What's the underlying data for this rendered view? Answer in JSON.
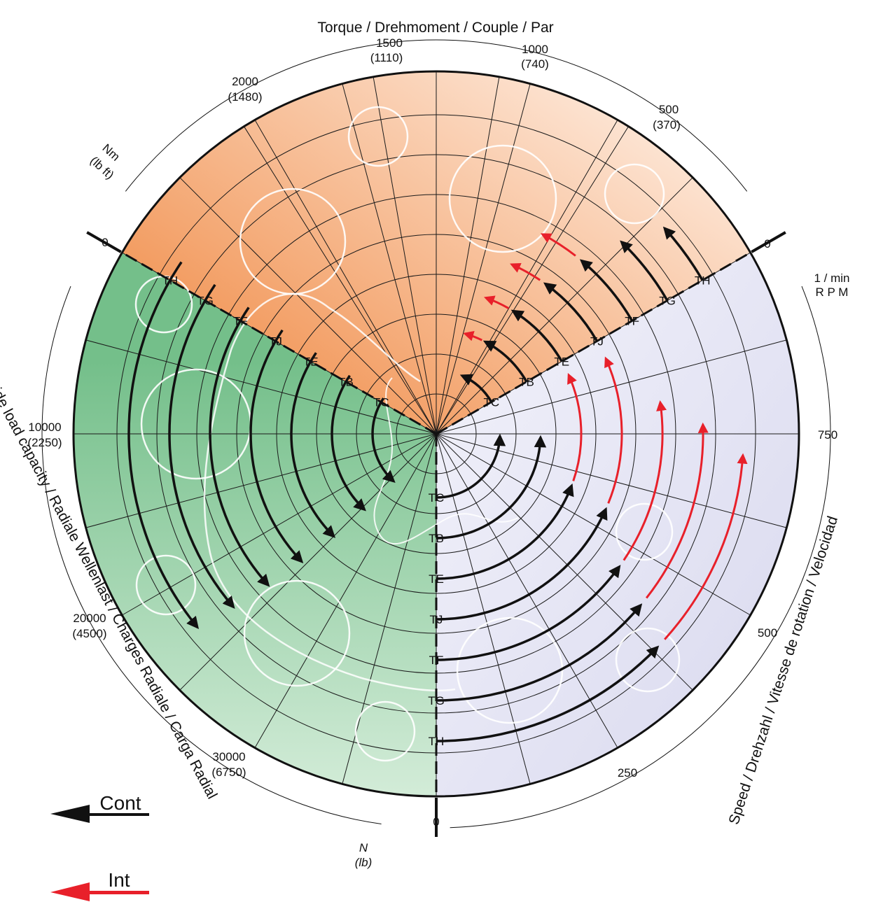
{
  "titles": {
    "torque": "Torque / Drehmoment / Couple / Par",
    "speed": "Speed / Drehzahl / Vitesse de rotation / Velocidad",
    "side_load": "Side load capacity / Radiale Wellenlast / Charges Radiale / Carga Radial"
  },
  "units": {
    "torque_1": "Nm",
    "torque_2": "(lb ft)",
    "speed_1": "1 / min",
    "speed_2": "R P M",
    "load_1": "N",
    "load_2": "(lb)"
  },
  "torque_ticks": [
    {
      "top": "0",
      "bottom": ""
    },
    {
      "top": "2000",
      "bottom": "(1480)"
    },
    {
      "top": "1500",
      "bottom": "(1110)"
    },
    {
      "top": "1000",
      "bottom": "(740)"
    },
    {
      "top": "500",
      "bottom": "(370)"
    },
    {
      "top": "0",
      "bottom": ""
    }
  ],
  "speed_ticks": [
    "750",
    "500",
    "250",
    "0"
  ],
  "load_ticks": [
    {
      "top": "10000",
      "bottom": "(2250)"
    },
    {
      "top": "20000",
      "bottom": "(4500)"
    },
    {
      "top": "30000",
      "bottom": "(6750)"
    }
  ],
  "models": [
    "TC",
    "TB",
    "TE",
    "TJ",
    "TF",
    "TG",
    "TH"
  ],
  "legend": {
    "cont": "Cont",
    "int": "Int"
  },
  "colors": {
    "torque_sector": "#f4a66f",
    "speed_sector": "#e4e4f2",
    "load_sector": "#8dc89c",
    "continuous": "#111111",
    "intermittent": "#e8202a"
  }
}
